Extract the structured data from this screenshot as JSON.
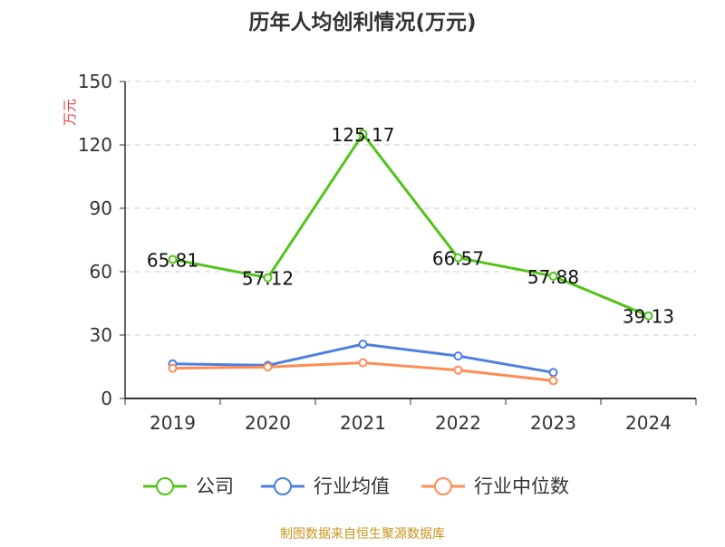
{
  "chart_data": {
    "type": "line",
    "title": "历年人均创利情况(万元)",
    "ylabel": "万元",
    "xlabel": "",
    "categories": [
      "2019",
      "2020",
      "2021",
      "2022",
      "2023",
      "2024"
    ],
    "ylim": [
      0,
      150
    ],
    "yticks": [
      "0",
      "30",
      "60",
      "90",
      "120",
      "150"
    ],
    "grid": true,
    "legend_position": "bottom",
    "series": [
      {
        "name": "公司",
        "color": "#52c41a",
        "values": [
          65.81,
          57.12,
          125.17,
          66.57,
          57.88,
          39.13
        ],
        "labels": [
          "65.81",
          "57.12",
          "125.17",
          "66.57",
          "57.88",
          "39.13"
        ]
      },
      {
        "name": "行业均值",
        "color": "#4e7fe0",
        "values": [
          16.4,
          15.7,
          25.7,
          20.1,
          12.3,
          null
        ]
      },
      {
        "name": "行业中位数",
        "color": "#ff8c55",
        "values": [
          14.3,
          14.9,
          16.9,
          13.4,
          8.4,
          null
        ]
      }
    ]
  },
  "source": "制图数据来自恒生聚源数据库"
}
